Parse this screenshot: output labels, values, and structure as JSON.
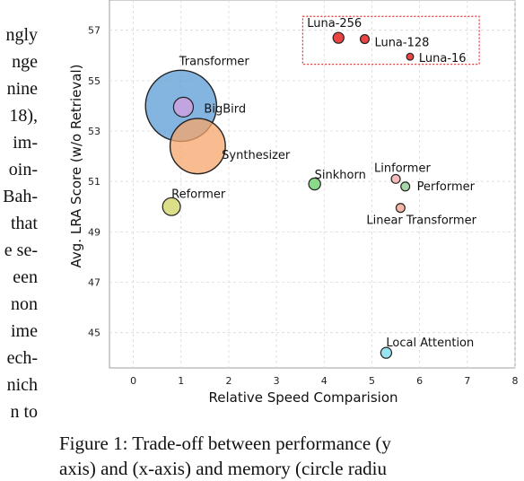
{
  "left_text_lines": [
    "ngly",
    "nge",
    "nine",
    "18),",
    "im-",
    "oin-",
    "Bah-",
    "that",
    "e se-",
    "een",
    "non",
    "ime",
    "ech-",
    "nich",
    "n to"
  ],
  "caption": {
    "line1": "Figure 1: Trade-off between performance (y",
    "line2": "axis) and (x-axis) and memory (circle radiu"
  },
  "chart_data": {
    "type": "scatter",
    "xlabel": "Relative Speed Comparision",
    "ylabel": "Avg. LRA Score (w/o Retrieval)",
    "xlim": [
      -0.5,
      8
    ],
    "ylim": [
      43.6,
      58.2
    ],
    "xticks": [
      0,
      1,
      2,
      3,
      4,
      5,
      6,
      7,
      8
    ],
    "yticks": [
      45,
      47,
      49,
      51,
      53,
      55,
      57
    ],
    "grid": true,
    "points": [
      {
        "name": "Transformer",
        "x": 1.0,
        "y": 54.0,
        "size": 36,
        "color": "#5b9bd5"
      },
      {
        "name": "BigBird",
        "x": 1.05,
        "y": 53.95,
        "size": 10,
        "color": "#c9a3e0"
      },
      {
        "name": "Synthesizer",
        "x": 1.35,
        "y": 52.4,
        "size": 28,
        "color": "#f5a56b"
      },
      {
        "name": "Reformer",
        "x": 0.8,
        "y": 50.0,
        "size": 9,
        "color": "#d8dc7c"
      },
      {
        "name": "Sinkhorn",
        "x": 3.8,
        "y": 50.9,
        "size": 6,
        "color": "#7dd67d"
      },
      {
        "name": "Linformer",
        "x": 5.5,
        "y": 51.1,
        "size": 4.5,
        "color": "#f2b4b4"
      },
      {
        "name": "Performer",
        "x": 5.7,
        "y": 50.8,
        "size": 4.5,
        "color": "#9ed29e"
      },
      {
        "name": "Linear Transformer",
        "x": 5.6,
        "y": 49.95,
        "size": 4.5,
        "color": "#f3b09a"
      },
      {
        "name": "Local Attention",
        "x": 5.3,
        "y": 44.2,
        "size": 5.5,
        "color": "#8de2f0"
      },
      {
        "name": "Luna-256",
        "x": 4.3,
        "y": 56.7,
        "size": 5.5,
        "color": "#e8312f"
      },
      {
        "name": "Luna-128",
        "x": 4.85,
        "y": 56.65,
        "size": 4.5,
        "color": "#e8312f"
      },
      {
        "name": "Luna-16",
        "x": 5.8,
        "y": 55.95,
        "size": 3.5,
        "color": "#e8312f"
      }
    ],
    "highlight_box": {
      "x_range": [
        3.55,
        7.25
      ],
      "y_range": [
        55.65,
        57.55
      ],
      "color": "#e8312f"
    }
  }
}
